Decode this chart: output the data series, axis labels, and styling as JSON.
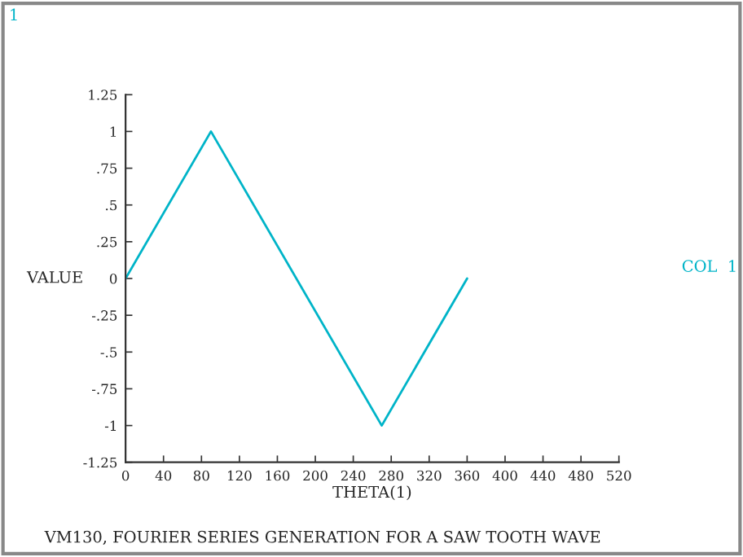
{
  "chart_data": {
    "type": "line",
    "title": "VM130, FOURIER SERIES GENERATION FOR A SAW TOOTH WAVE",
    "xlabel": "THETA(1)",
    "ylabel": "VALUE",
    "annotations": [
      "1"
    ],
    "x": [
      0,
      90,
      270,
      360
    ],
    "series": [
      {
        "name": "COL  1",
        "color": "#00b4c8",
        "values": [
          0,
          1,
          -1,
          0
        ]
      }
    ],
    "xlim": [
      0,
      520
    ],
    "xticks": [
      0,
      40,
      80,
      120,
      160,
      200,
      240,
      280,
      320,
      360,
      400,
      440,
      480,
      520
    ],
    "ylim": [
      -1.25,
      1.25
    ],
    "yticks": [
      {
        "value": -1.25,
        "label": "-1.25"
      },
      {
        "value": -1,
        "label": "-1"
      },
      {
        "value": -0.75,
        "label": "-.75"
      },
      {
        "value": -0.5,
        "label": "-.5"
      },
      {
        "value": -0.25,
        "label": "-.25"
      },
      {
        "value": 0,
        "label": "0"
      },
      {
        "value": 0.25,
        "label": ".25"
      },
      {
        "value": 0.5,
        "label": ".5"
      },
      {
        "value": 0.75,
        "label": ".75"
      },
      {
        "value": 1,
        "label": "1"
      },
      {
        "value": 1.25,
        "label": "1.25"
      }
    ],
    "grid": false,
    "legend": "right",
    "marker": "none",
    "line_style": "solid"
  }
}
